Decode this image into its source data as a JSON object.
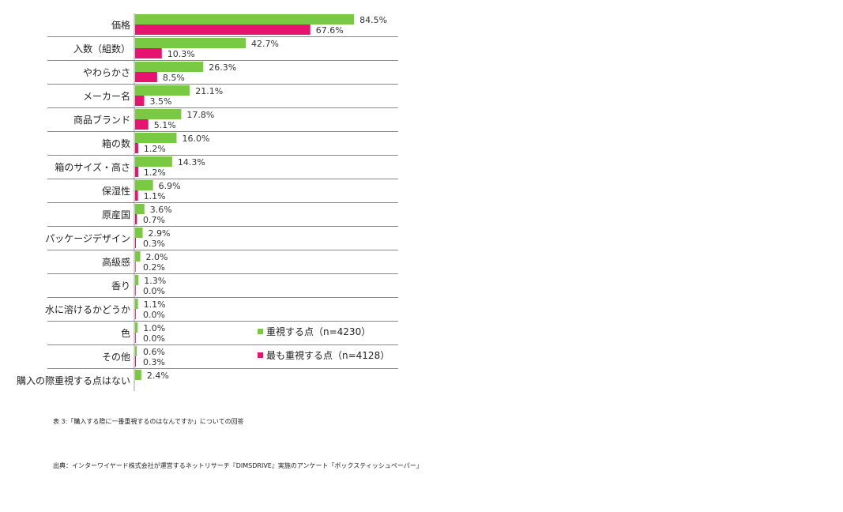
{
  "chart_data": {
    "type": "bar",
    "orientation": "horizontal",
    "categories": [
      "価格",
      "入数（組数）",
      "やわらかさ",
      "メーカー名",
      "商品ブランド",
      "箱の数",
      "箱のサイズ・高さ",
      "保湿性",
      "原産国",
      "パッケージデザイン",
      "高級感",
      "香り",
      "水に溶けるかどうか",
      "色",
      "その他",
      "購入の際重視する点はない"
    ],
    "series": [
      {
        "name": "重視する点（n=4230）",
        "color": "#7ac943",
        "values": [
          84.5,
          42.7,
          26.3,
          21.1,
          17.8,
          16.0,
          14.3,
          6.9,
          3.6,
          2.9,
          2.0,
          1.3,
          1.1,
          1.0,
          0.6,
          2.4
        ],
        "labels": [
          "84.5%",
          "42.7%",
          "26.3%",
          "21.1%",
          "17.8%",
          "16.0%",
          "14.3%",
          "6.9%",
          "3.6%",
          "2.9%",
          "2.0%",
          "1.3%",
          "1.1%",
          "1.0%",
          "0.6%",
          "2.4%"
        ]
      },
      {
        "name": "最も重視する点（n=4128）",
        "color": "#e6146e",
        "values": [
          67.6,
          10.3,
          8.5,
          3.5,
          5.1,
          1.2,
          1.2,
          1.1,
          0.7,
          0.3,
          0.2,
          0.0,
          0.0,
          0.0,
          0.3,
          null
        ],
        "labels": [
          "67.6%",
          "10.3%",
          "8.5%",
          "3.5%",
          "5.1%",
          "1.2%",
          "1.2%",
          "1.1%",
          "0.7%",
          "0.3%",
          "0.2%",
          "0.0%",
          "0.0%",
          "0.0%",
          "0.3%",
          null
        ]
      }
    ],
    "xlim": [
      0,
      100
    ],
    "grid": false,
    "legend_position": "lower-right"
  },
  "caption": "表 3:「購入する際に一番重視するのはなんですか」についての回答",
  "source": "出典：インターワイヤード株式会社が運営するネットリサーチ『DIMSDRIVE』実施のアンケート「ボックスティッシュペーパー」"
}
